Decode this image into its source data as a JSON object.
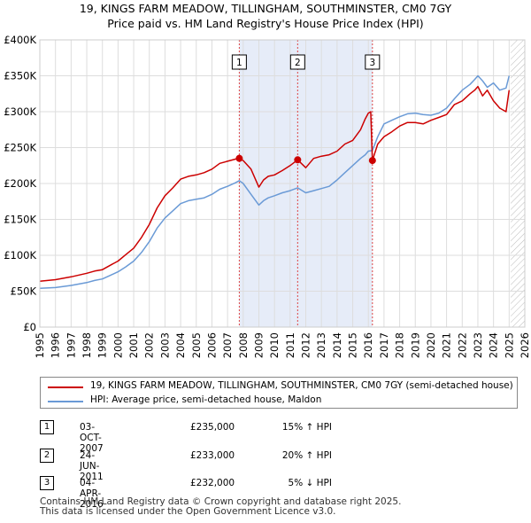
{
  "chart_data": {
    "type": "line",
    "title": "19, KINGS FARM MEADOW, TILLINGHAM, SOUTHMINSTER, CM0 7GY",
    "subtitle": "Price paid vs. HM Land Registry's House Price Index (HPI)",
    "xlim": [
      1995,
      2026
    ],
    "ylim": [
      0,
      400000
    ],
    "x_ticks": [
      "1995",
      "1996",
      "1997",
      "1998",
      "1999",
      "2000",
      "2001",
      "2002",
      "2003",
      "2004",
      "2005",
      "2006",
      "2007",
      "2008",
      "2009",
      "2010",
      "2011",
      "2012",
      "2013",
      "2014",
      "2015",
      "2016",
      "2017",
      "2018",
      "2019",
      "2020",
      "2021",
      "2022",
      "2023",
      "2024",
      "2025",
      "2026"
    ],
    "y_ticks": [
      {
        "value": 0,
        "label": "£0"
      },
      {
        "value": 50000,
        "label": "£50K"
      },
      {
        "value": 100000,
        "label": "£100K"
      },
      {
        "value": 150000,
        "label": "£150K"
      },
      {
        "value": 200000,
        "label": "£200K"
      },
      {
        "value": 250000,
        "label": "£250K"
      },
      {
        "value": 300000,
        "label": "£300K"
      },
      {
        "value": 350000,
        "label": "£350K"
      },
      {
        "value": 400000,
        "label": "£400K"
      }
    ],
    "grid": true,
    "shaded_ranges": [
      [
        2007.75,
        2016.26
      ]
    ],
    "hatched_from": 2025.1,
    "series": [
      {
        "name": "19, KINGS FARM MEADOW, TILLINGHAM, SOUTHMINSTER, CM0 7GY (semi-detached house)",
        "color": "#cc0000",
        "x": [
          1995.0,
          1996.0,
          1997.0,
          1998.0,
          1998.5,
          1999.0,
          1999.5,
          2000.0,
          2000.5,
          2001.0,
          2001.5,
          2002.0,
          2002.5,
          2003.0,
          2003.5,
          2004.0,
          2004.5,
          2005.0,
          2005.5,
          2006.0,
          2006.5,
          2007.0,
          2007.5,
          2007.75,
          2008.0,
          2008.5,
          2009.0,
          2009.3,
          2009.6,
          2010.0,
          2010.5,
          2011.0,
          2011.48,
          2012.0,
          2012.5,
          2013.0,
          2013.5,
          2014.0,
          2014.5,
          2015.0,
          2015.5,
          2015.8,
          2016.0,
          2016.15,
          2016.26,
          2016.6,
          2017.0,
          2017.5,
          2018.0,
          2018.5,
          2019.0,
          2019.5,
          2020.0,
          2020.5,
          2021.0,
          2021.5,
          2022.0,
          2022.5,
          2022.8,
          2023.0,
          2023.3,
          2023.6,
          2024.0,
          2024.4,
          2024.8,
          2025.0
        ],
        "values": [
          64000,
          66000,
          70000,
          75000,
          78000,
          80000,
          86000,
          92000,
          101000,
          110000,
          125000,
          143000,
          166000,
          183000,
          194000,
          206000,
          210000,
          212000,
          215000,
          220000,
          228000,
          231000,
          234000,
          235000,
          232000,
          220000,
          195000,
          205000,
          210000,
          212000,
          218000,
          225000,
          233000,
          222000,
          235000,
          238000,
          240000,
          245000,
          255000,
          260000,
          275000,
          290000,
          298000,
          300000,
          232000,
          255000,
          265000,
          272000,
          280000,
          285000,
          285000,
          283000,
          288000,
          292000,
          296000,
          310000,
          315000,
          325000,
          330000,
          335000,
          322000,
          330000,
          315000,
          305000,
          300000,
          330000
        ]
      },
      {
        "name": "HPI: Average price, semi-detached house, Maldon",
        "color": "#6a9ad6",
        "x": [
          1995.0,
          1996.0,
          1997.0,
          1998.0,
          1998.5,
          1999.0,
          1999.5,
          2000.0,
          2000.5,
          2001.0,
          2001.5,
          2002.0,
          2002.5,
          2003.0,
          2003.5,
          2004.0,
          2004.5,
          2005.0,
          2005.5,
          2006.0,
          2006.5,
          2007.0,
          2007.5,
          2007.75,
          2008.0,
          2008.5,
          2009.0,
          2009.3,
          2009.6,
          2010.0,
          2010.5,
          2011.0,
          2011.48,
          2012.0,
          2012.5,
          2013.0,
          2013.5,
          2014.0,
          2014.5,
          2015.0,
          2015.5,
          2015.8,
          2016.0,
          2016.26,
          2016.6,
          2017.0,
          2017.5,
          2018.0,
          2018.5,
          2019.0,
          2019.5,
          2020.0,
          2020.5,
          2021.0,
          2021.5,
          2022.0,
          2022.5,
          2022.8,
          2023.0,
          2023.3,
          2023.6,
          2024.0,
          2024.4,
          2024.8,
          2025.0
        ],
        "values": [
          54000,
          55000,
          58000,
          62000,
          65000,
          67000,
          72000,
          77000,
          84000,
          92000,
          104000,
          119000,
          138000,
          152000,
          162000,
          172000,
          176000,
          178000,
          180000,
          185000,
          192000,
          196000,
          201000,
          204000,
          200000,
          185000,
          170000,
          176000,
          180000,
          183000,
          187000,
          190000,
          194000,
          187000,
          190000,
          193000,
          196000,
          205000,
          215000,
          225000,
          235000,
          240000,
          245000,
          246000,
          265000,
          283000,
          288000,
          293000,
          297000,
          298000,
          296000,
          295000,
          298000,
          305000,
          318000,
          330000,
          338000,
          345000,
          350000,
          343000,
          334000,
          340000,
          330000,
          333000,
          350000
        ]
      }
    ],
    "sales": [
      {
        "num": "1",
        "x": 2007.75,
        "value": 235000
      },
      {
        "num": "2",
        "x": 2011.48,
        "value": 233000
      },
      {
        "num": "3",
        "x": 2016.26,
        "value": 232000
      }
    ]
  },
  "legend": {
    "property_label": "19, KINGS FARM MEADOW, TILLINGHAM, SOUTHMINSTER, CM0 7GY (semi-detached house)",
    "hpi_label": "HPI: Average price, semi-detached house, Maldon"
  },
  "sales_table": [
    {
      "num": "1",
      "date": "03-OCT-2007",
      "price": "£235,000",
      "hpi": "15% ↑ HPI"
    },
    {
      "num": "2",
      "date": "24-JUN-2011",
      "price": "£233,000",
      "hpi": "20% ↑ HPI"
    },
    {
      "num": "3",
      "date": "04-APR-2016",
      "price": "£232,000",
      "hpi": "5% ↓ HPI"
    }
  ],
  "footer": {
    "line1": "Contains HM Land Registry data © Crown copyright and database right 2025.",
    "line2": "This data is licensed under the Open Government Licence v3.0."
  }
}
